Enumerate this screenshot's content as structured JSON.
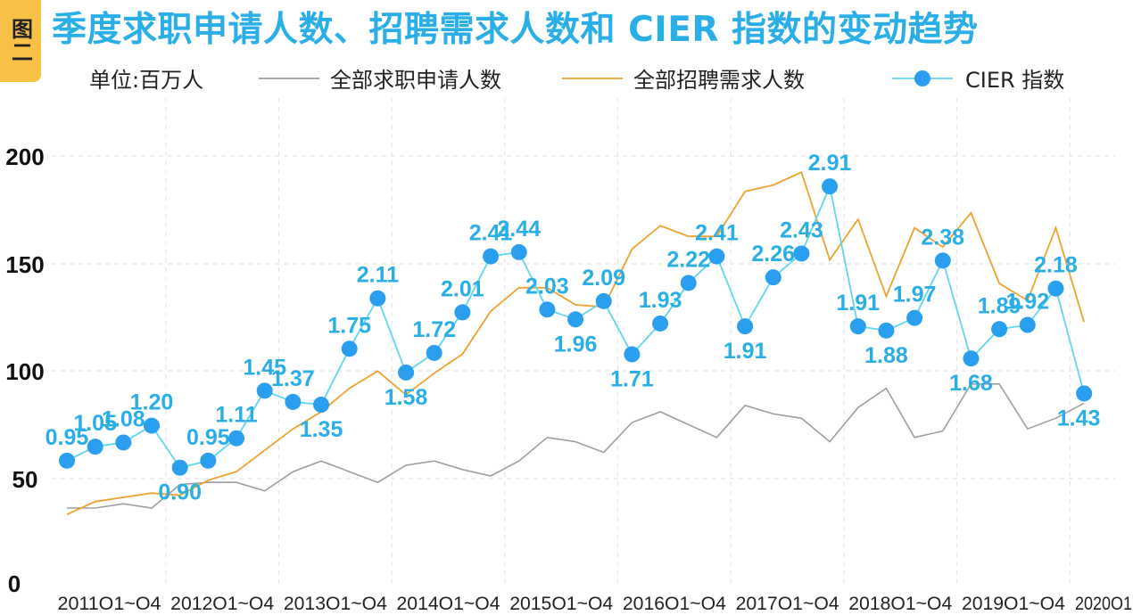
{
  "figure": {
    "badge": "图二",
    "title": "季度求职申请人数、招聘需求人数和 CIER 指数的变动趋势",
    "unit": "单位:百万人"
  },
  "colors": {
    "applicants": "#9e9e9e",
    "demand": "#f0a22e",
    "cier": "#5ed8ee",
    "marker": "#2a9ff0",
    "label": "#29aee8",
    "title": "#29aee8",
    "badge": "#f8c146"
  },
  "chart_data": {
    "type": "line",
    "x": [
      "2011Q1",
      "2011Q2",
      "2011Q3",
      "2011Q4",
      "2012Q1",
      "2012Q2",
      "2012Q3",
      "2012Q4",
      "2013Q1",
      "2013Q2",
      "2013Q3",
      "2013Q4",
      "2014Q1",
      "2014Q2",
      "2014Q3",
      "2014Q4",
      "2015Q1",
      "2015Q2",
      "2015Q3",
      "2015Q4",
      "2016Q1",
      "2016Q2",
      "2016Q3",
      "2016Q4",
      "2017Q1",
      "2017Q2",
      "2017Q3",
      "2017Q4",
      "2018Q1",
      "2018Q2",
      "2018Q3",
      "2018Q4",
      "2019Q1",
      "2019Q2",
      "2019Q3",
      "2019Q4",
      "2020Q1"
    ],
    "x_tick_labels": [
      "2011O1~O4",
      "2012O1~O4",
      "2013O1~O4",
      "2014O1~O4",
      "2015O1~O4",
      "2016O1~O4",
      "2017O1~O4",
      "2018O1~O4",
      "2019O1~O4",
      "2020O1"
    ],
    "y_ticks": [
      0,
      50,
      100,
      150,
      200
    ],
    "ylim": [
      0,
      220
    ],
    "grid": true,
    "legend_position": "top",
    "series": [
      {
        "name": "全部求职申请人数",
        "key": "applicants",
        "values": [
          35,
          35,
          37,
          35,
          46,
          47,
          47,
          43,
          52,
          57,
          52,
          47,
          55,
          57,
          53,
          50,
          57,
          68,
          66,
          61,
          75,
          80,
          74,
          68,
          83,
          79,
          77,
          66,
          82,
          91,
          68,
          71,
          93,
          93,
          72,
          77,
          84
        ]
      },
      {
        "name": "全部招聘需求人数",
        "key": "demand",
        "values": [
          32,
          38,
          40,
          42,
          41,
          48,
          52,
          62,
          72,
          80,
          91,
          99,
          88,
          98,
          107,
          127,
          138,
          138,
          130,
          129,
          156,
          167,
          162,
          162,
          183,
          186,
          192,
          151,
          170,
          134,
          166,
          157,
          173,
          140,
          132,
          166,
          122
        ]
      },
      {
        "name": "CIER 指数",
        "key": "cier",
        "values": [
          0.95,
          1.05,
          1.08,
          1.2,
          0.9,
          0.95,
          1.11,
          1.45,
          1.37,
          1.35,
          1.75,
          2.11,
          1.58,
          1.72,
          2.01,
          2.41,
          2.44,
          2.03,
          1.96,
          2.09,
          1.71,
          1.93,
          2.22,
          2.41,
          1.91,
          2.26,
          2.43,
          2.91,
          1.91,
          1.88,
          1.97,
          2.38,
          1.68,
          1.89,
          1.92,
          2.18,
          1.43
        ],
        "labels": [
          "0.95",
          "1.05",
          "1.08",
          "1.20",
          "0.90",
          "0.95",
          "1.11",
          "1.45",
          "1.37",
          "1.35",
          "1.75",
          "2.11",
          "1.58",
          "1.72",
          "2.01",
          "2.41",
          "2.44",
          "2.03",
          "1.96",
          "2.09",
          "1.71",
          "1.93",
          "2.22",
          "2.41",
          "1.91",
          "2.26",
          "2.43",
          "2.91",
          "1.91",
          "1.88",
          "1.97",
          "2.38",
          "1.68",
          "1.89",
          "1.92",
          "2.18",
          "1.43"
        ]
      }
    ]
  }
}
